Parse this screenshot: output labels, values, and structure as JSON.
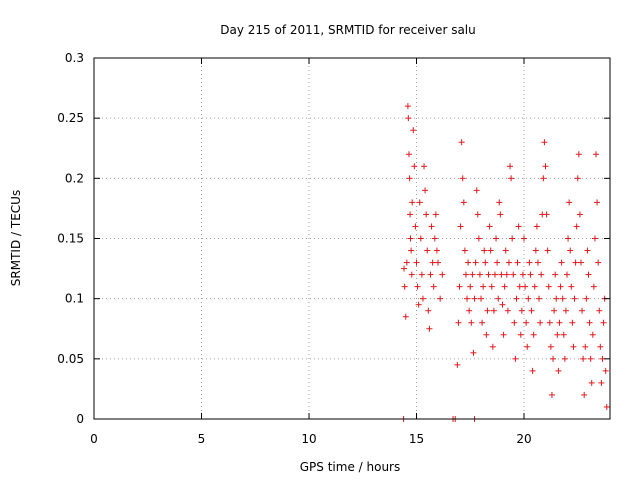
{
  "chart_data": {
    "type": "scatter",
    "title": "Day 215 of 2011, SRMTID for receiver salu",
    "xlabel": "GPS time / hours",
    "ylabel": "SRMTID / TECUs",
    "xlim": [
      0,
      24
    ],
    "ylim": [
      0,
      0.3
    ],
    "grid": true,
    "x_ticks": [
      0,
      5,
      10,
      15,
      20
    ],
    "x_tick_labels": [
      "0",
      "5",
      "10",
      "15",
      "20"
    ],
    "y_ticks": [
      0,
      0.05,
      0.1,
      0.15,
      0.2,
      0.25,
      0.3
    ],
    "y_tick_labels": [
      "0",
      "0.05",
      "0.1",
      "0.15",
      "0.2",
      "0.25",
      "0.3"
    ],
    "marker": "plus",
    "series": [
      {
        "name": "SRMTID",
        "color": "#e41a1c",
        "points": [
          [
            14.4,
            0.0
          ],
          [
            14.42,
            0.125
          ],
          [
            14.45,
            0.11
          ],
          [
            14.5,
            0.085
          ],
          [
            14.55,
            0.13
          ],
          [
            14.6,
            0.26
          ],
          [
            14.62,
            0.25
          ],
          [
            14.65,
            0.22
          ],
          [
            14.68,
            0.2
          ],
          [
            14.7,
            0.17
          ],
          [
            14.72,
            0.15
          ],
          [
            14.75,
            0.14
          ],
          [
            14.78,
            0.12
          ],
          [
            14.8,
            0.18
          ],
          [
            14.85,
            0.24
          ],
          [
            14.9,
            0.21
          ],
          [
            14.95,
            0.16
          ],
          [
            15.0,
            0.13
          ],
          [
            15.05,
            0.11
          ],
          [
            15.1,
            0.095
          ],
          [
            15.15,
            0.18
          ],
          [
            15.2,
            0.15
          ],
          [
            15.25,
            0.12
          ],
          [
            15.3,
            0.1
          ],
          [
            15.35,
            0.21
          ],
          [
            15.4,
            0.19
          ],
          [
            15.45,
            0.17
          ],
          [
            15.5,
            0.14
          ],
          [
            15.55,
            0.09
          ],
          [
            15.6,
            0.075
          ],
          [
            15.65,
            0.12
          ],
          [
            15.7,
            0.16
          ],
          [
            15.75,
            0.13
          ],
          [
            15.8,
            0.11
          ],
          [
            15.85,
            0.15
          ],
          [
            15.9,
            0.17
          ],
          [
            15.95,
            0.14
          ],
          [
            16.0,
            0.13
          ],
          [
            16.1,
            0.1
          ],
          [
            16.2,
            0.12
          ],
          [
            16.7,
            0.0
          ],
          [
            16.8,
            0.0
          ],
          [
            17.7,
            0.0
          ],
          [
            16.9,
            0.045
          ],
          [
            16.95,
            0.08
          ],
          [
            17.0,
            0.11
          ],
          [
            17.05,
            0.16
          ],
          [
            17.1,
            0.23
          ],
          [
            17.15,
            0.2
          ],
          [
            17.2,
            0.18
          ],
          [
            17.25,
            0.14
          ],
          [
            17.3,
            0.12
          ],
          [
            17.35,
            0.1
          ],
          [
            17.4,
            0.13
          ],
          [
            17.45,
            0.09
          ],
          [
            17.5,
            0.11
          ],
          [
            17.55,
            0.08
          ],
          [
            17.6,
            0.12
          ],
          [
            17.65,
            0.055
          ],
          [
            17.7,
            0.1
          ],
          [
            17.75,
            0.13
          ],
          [
            17.8,
            0.19
          ],
          [
            17.85,
            0.17
          ],
          [
            17.9,
            0.15
          ],
          [
            17.95,
            0.12
          ],
          [
            18.0,
            0.1
          ],
          [
            18.05,
            0.08
          ],
          [
            18.1,
            0.11
          ],
          [
            18.15,
            0.14
          ],
          [
            18.2,
            0.13
          ],
          [
            18.25,
            0.07
          ],
          [
            18.3,
            0.09
          ],
          [
            18.35,
            0.12
          ],
          [
            18.4,
            0.16
          ],
          [
            18.45,
            0.14
          ],
          [
            18.5,
            0.11
          ],
          [
            18.55,
            0.06
          ],
          [
            18.6,
            0.09
          ],
          [
            18.65,
            0.12
          ],
          [
            18.7,
            0.15
          ],
          [
            18.75,
            0.13
          ],
          [
            18.8,
            0.1
          ],
          [
            18.85,
            0.18
          ],
          [
            18.9,
            0.17
          ],
          [
            18.95,
            0.12
          ],
          [
            19.0,
            0.095
          ],
          [
            19.05,
            0.07
          ],
          [
            19.1,
            0.11
          ],
          [
            19.15,
            0.14
          ],
          [
            19.2,
            0.12
          ],
          [
            19.25,
            0.09
          ],
          [
            19.3,
            0.13
          ],
          [
            19.35,
            0.21
          ],
          [
            19.4,
            0.2
          ],
          [
            19.45,
            0.15
          ],
          [
            19.5,
            0.12
          ],
          [
            19.55,
            0.08
          ],
          [
            19.6,
            0.05
          ],
          [
            19.65,
            0.1
          ],
          [
            19.7,
            0.13
          ],
          [
            19.75,
            0.16
          ],
          [
            19.8,
            0.11
          ],
          [
            19.85,
            0.07
          ],
          [
            19.9,
            0.09
          ],
          [
            19.95,
            0.12
          ],
          [
            20.0,
            0.15
          ],
          [
            20.05,
            0.11
          ],
          [
            20.1,
            0.08
          ],
          [
            20.15,
            0.06
          ],
          [
            20.2,
            0.1
          ],
          [
            20.25,
            0.13
          ],
          [
            20.3,
            0.12
          ],
          [
            20.35,
            0.09
          ],
          [
            20.4,
            0.04
          ],
          [
            20.45,
            0.07
          ],
          [
            20.5,
            0.11
          ],
          [
            20.55,
            0.14
          ],
          [
            20.6,
            0.16
          ],
          [
            20.65,
            0.13
          ],
          [
            20.7,
            0.1
          ],
          [
            20.75,
            0.08
          ],
          [
            20.8,
            0.12
          ],
          [
            20.85,
            0.17
          ],
          [
            20.9,
            0.2
          ],
          [
            20.95,
            0.23
          ],
          [
            21.0,
            0.21
          ],
          [
            21.05,
            0.17
          ],
          [
            21.1,
            0.14
          ],
          [
            21.15,
            0.11
          ],
          [
            21.2,
            0.08
          ],
          [
            21.25,
            0.06
          ],
          [
            21.3,
            0.02
          ],
          [
            21.35,
            0.05
          ],
          [
            21.4,
            0.09
          ],
          [
            21.45,
            0.12
          ],
          [
            21.5,
            0.1
          ],
          [
            21.55,
            0.07
          ],
          [
            21.6,
            0.04
          ],
          [
            21.65,
            0.08
          ],
          [
            21.7,
            0.11
          ],
          [
            21.75,
            0.13
          ],
          [
            21.8,
            0.1
          ],
          [
            21.85,
            0.07
          ],
          [
            21.9,
            0.05
          ],
          [
            21.95,
            0.09
          ],
          [
            22.0,
            0.12
          ],
          [
            22.05,
            0.15
          ],
          [
            22.1,
            0.18
          ],
          [
            22.15,
            0.14
          ],
          [
            22.2,
            0.11
          ],
          [
            22.25,
            0.08
          ],
          [
            22.3,
            0.06
          ],
          [
            22.35,
            0.1
          ],
          [
            22.4,
            0.13
          ],
          [
            22.45,
            0.16
          ],
          [
            22.5,
            0.2
          ],
          [
            22.55,
            0.22
          ],
          [
            22.6,
            0.17
          ],
          [
            22.65,
            0.13
          ],
          [
            22.7,
            0.09
          ],
          [
            22.75,
            0.05
          ],
          [
            22.8,
            0.02
          ],
          [
            22.85,
            0.06
          ],
          [
            22.9,
            0.1
          ],
          [
            22.95,
            0.14
          ],
          [
            23.0,
            0.12
          ],
          [
            23.05,
            0.08
          ],
          [
            23.1,
            0.05
          ],
          [
            23.15,
            0.03
          ],
          [
            23.2,
            0.07
          ],
          [
            23.25,
            0.11
          ],
          [
            23.3,
            0.15
          ],
          [
            23.35,
            0.22
          ],
          [
            23.4,
            0.18
          ],
          [
            23.45,
            0.13
          ],
          [
            23.5,
            0.09
          ],
          [
            23.55,
            0.06
          ],
          [
            23.6,
            0.03
          ],
          [
            23.65,
            0.05
          ],
          [
            23.7,
            0.08
          ],
          [
            23.75,
            0.1
          ],
          [
            23.8,
            0.04
          ],
          [
            23.85,
            0.01
          ]
        ]
      }
    ]
  }
}
